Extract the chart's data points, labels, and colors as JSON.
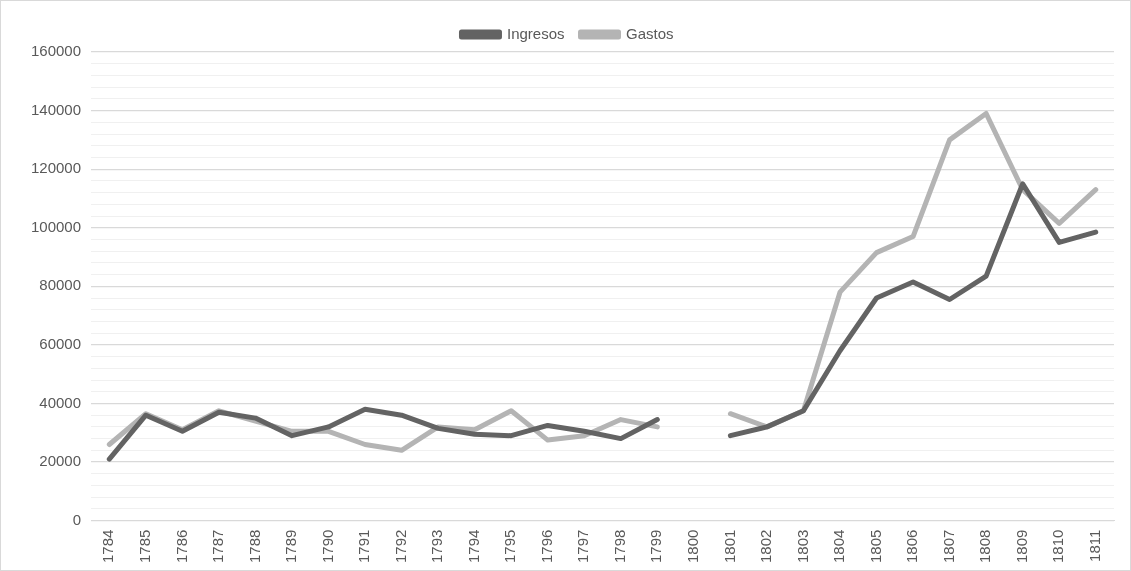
{
  "chart_data": {
    "type": "line",
    "categories": [
      "1784",
      "1785",
      "1786",
      "1787",
      "1788",
      "1789",
      "1790",
      "1791",
      "1792",
      "1793",
      "1794",
      "1795",
      "1796",
      "1797",
      "1798",
      "1799",
      "1800",
      "1801",
      "1802",
      "1803",
      "1804",
      "1805",
      "1806",
      "1807",
      "1808",
      "1809",
      "1810",
      "1811"
    ],
    "series": [
      {
        "name": "Ingresos",
        "color": "#636363",
        "values": [
          21000,
          36000,
          30500,
          37000,
          35000,
          29000,
          32000,
          38000,
          36000,
          31500,
          29500,
          29000,
          32500,
          30500,
          28000,
          34500,
          null,
          29000,
          32000,
          37500,
          58000,
          76000,
          81500,
          75500,
          83500,
          115000,
          95000,
          98500
        ]
      },
      {
        "name": "Gastos",
        "color": "#b4b4b4",
        "values": [
          26000,
          36500,
          31000,
          37500,
          34000,
          30500,
          30500,
          26000,
          24000,
          32000,
          31000,
          37500,
          27500,
          29000,
          34500,
          32000,
          null,
          36500,
          32000,
          37500,
          78000,
          91500,
          97000,
          130000,
          139000,
          113000,
          101500,
          113000
        ]
      }
    ],
    "ylim": [
      0,
      160000
    ],
    "yticks": [
      0,
      {
        "value": 4000,
        "label": null
      },
      {
        "value": 8000,
        "label": null
      },
      {
        "value": 12000,
        "label": null
      },
      {
        "value": 16000,
        "label": null
      },
      20000,
      {
        "value": 24000,
        "label": null
      },
      {
        "value": 28000,
        "label": null
      },
      {
        "value": 32000,
        "label": null
      },
      {
        "value": 36000,
        "label": null
      },
      40000,
      {
        "value": 44000,
        "label": null
      },
      {
        "value": 48000,
        "label": null
      },
      {
        "value": 52000,
        "label": null
      },
      {
        "value": 56000,
        "label": null
      },
      60000,
      {
        "value": 64000,
        "label": null
      },
      {
        "value": 68000,
        "label": null
      },
      {
        "value": 72000,
        "label": null
      },
      {
        "value": 76000,
        "label": null
      },
      80000,
      {
        "value": 84000,
        "label": null
      },
      {
        "value": 88000,
        "label": null
      },
      {
        "value": 92000,
        "label": null
      },
      {
        "value": 96000,
        "label": null
      },
      100000,
      {
        "value": 104000,
        "label": null
      },
      {
        "value": 108000,
        "label": null
      },
      {
        "value": 112000,
        "label": null
      },
      {
        "value": 116000,
        "label": null
      },
      120000,
      {
        "value": 124000,
        "label": null
      },
      {
        "value": 128000,
        "label": null
      },
      {
        "value": 132000,
        "label": null
      },
      {
        "value": 136000,
        "label": null
      },
      140000,
      {
        "value": 144000,
        "label": null
      },
      {
        "value": 148000,
        "label": null
      },
      {
        "value": 152000,
        "label": null
      },
      {
        "value": 156000,
        "label": null
      },
      160000
    ],
    "grid": "y",
    "legend": "top",
    "marker": "none",
    "line_style": "solid"
  }
}
